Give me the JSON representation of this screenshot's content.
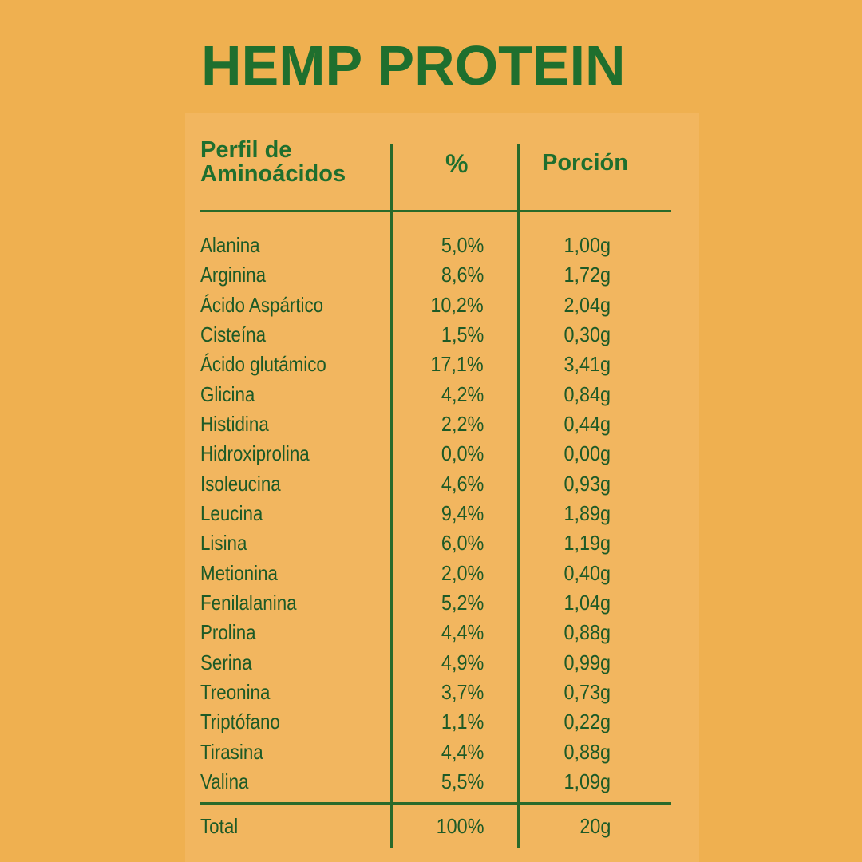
{
  "title": "HEMP PROTEIN",
  "table": {
    "headers": {
      "name_line1": "Perfil de",
      "name_line2": "Aminoácidos",
      "percent": "%",
      "portion": "Porción"
    },
    "rows": [
      {
        "name": "Alanina",
        "percent": "5,0%",
        "portion": "1,00g"
      },
      {
        "name": "Arginina",
        "percent": "8,6%",
        "portion": "1,72g"
      },
      {
        "name": "Ácido Aspártico",
        "percent": "10,2%",
        "portion": "2,04g"
      },
      {
        "name": "Cisteína",
        "percent": "1,5%",
        "portion": "0,30g"
      },
      {
        "name": "Ácido glutámico",
        "percent": "17,1%",
        "portion": "3,41g"
      },
      {
        "name": "Glicina",
        "percent": "4,2%",
        "portion": "0,84g"
      },
      {
        "name": "Histidina",
        "percent": "2,2%",
        "portion": "0,44g"
      },
      {
        "name": "Hidroxiprolina",
        "percent": "0,0%",
        "portion": "0,00g"
      },
      {
        "name": "Isoleucina",
        "percent": "4,6%",
        "portion": "0,93g"
      },
      {
        "name": "Leucina",
        "percent": "9,4%",
        "portion": "1,89g"
      },
      {
        "name": "Lisina",
        "percent": "6,0%",
        "portion": "1,19g"
      },
      {
        "name": "Metionina",
        "percent": "2,0%",
        "portion": "0,40g"
      },
      {
        "name": "Fenilalanina",
        "percent": "5,2%",
        "portion": "1,04g"
      },
      {
        "name": "Prolina",
        "percent": "4,4%",
        "portion": "0,88g"
      },
      {
        "name": "Serina",
        "percent": "4,9%",
        "portion": "0,99g"
      },
      {
        "name": "Treonina",
        "percent": "3,7%",
        "portion": "0,73g"
      },
      {
        "name": "Triptófano",
        "percent": "1,1%",
        "portion": "0,22g"
      },
      {
        "name": "Tirasina",
        "percent": "4,4%",
        "portion": "0,88g"
      },
      {
        "name": "Valina",
        "percent": "5,5%",
        "portion": "1,09g"
      }
    ],
    "total": {
      "name": "Total",
      "percent": "100%",
      "portion": "20g"
    }
  },
  "colors": {
    "background": "#efb050",
    "panel": "#f2b65f",
    "text_green": "#1f6f2e",
    "rule": "#2a6a2a"
  }
}
